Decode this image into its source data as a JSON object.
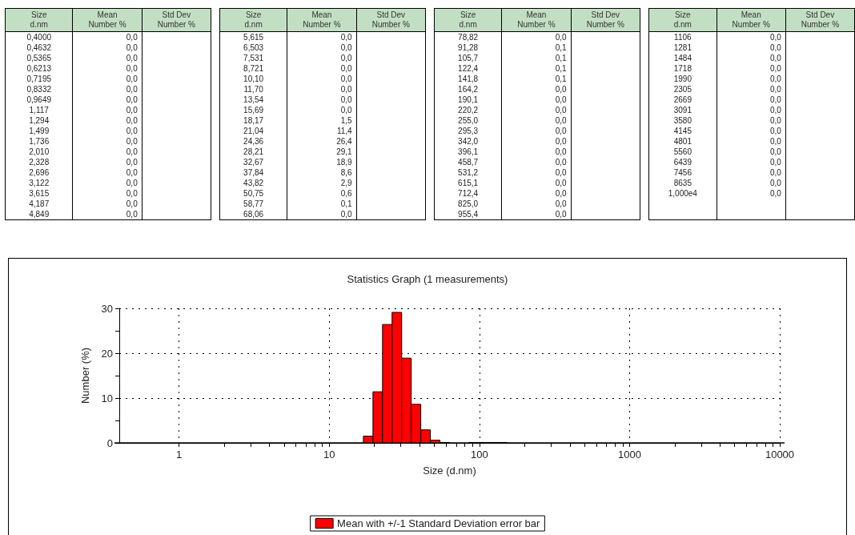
{
  "chart_data": [
    {
      "type": "other",
      "annotations": [
        "Size\nd.nm",
        "Mean\nNumber %",
        "Std Dev\nNumber %"
      ],
      "categories": [
        "0,4000",
        "0,4632",
        "0,5365",
        "0,6213",
        "0,7195",
        "0,8332",
        "0,9649",
        "1,117",
        "1,294",
        "1,499",
        "1,736",
        "2,010",
        "2,328",
        "2,696",
        "3,122",
        "3,615",
        "4,187",
        "4,849",
        "5,615",
        "6,503",
        "7,531",
        "8,721",
        "10,10",
        "11,70",
        "13,54",
        "15,69",
        "18,17",
        "21,04",
        "24,36",
        "28,21",
        "32,67",
        "37,84",
        "43,82",
        "50,75",
        "58,77",
        "68,06",
        "78,82",
        "91,28",
        "105,7",
        "122,4",
        "141,8",
        "164,2",
        "190,1",
        "220,2",
        "255,0",
        "295,3",
        "342,0",
        "396,1",
        "458,7",
        "531,2",
        "615,1",
        "712,4",
        "825,0",
        "955,4",
        "1106",
        "1281",
        "1484",
        "1718",
        "1990",
        "2305",
        "2669",
        "3091",
        "3580",
        "4145",
        "4801",
        "5560",
        "6439",
        "7456",
        "8635",
        "1,000e4"
      ],
      "value_labels": [
        "0,0",
        "0,0",
        "0,0",
        "0,0",
        "0,0",
        "0,0",
        "0,0",
        "0,0",
        "0,0",
        "0,0",
        "0,0",
        "0,0",
        "0,0",
        "0,0",
        "0,0",
        "0,0",
        "0,0",
        "0,0",
        "0,0",
        "0,0",
        "0,0",
        "0,0",
        "0,0",
        "0,0",
        "0,0",
        "0,0",
        "1,5",
        "11,4",
        "26,4",
        "29,1",
        "18,9",
        "8,6",
        "2,9",
        "0,6",
        "0,1",
        "0,0",
        "0,0",
        "0,1",
        "0,1",
        "0,1",
        "0,1",
        "0,0",
        "0,0",
        "0,0",
        "0,0",
        "0,0",
        "0,0",
        "0,0",
        "0,0",
        "0,0",
        "0,0",
        "0,0",
        "0,0",
        "0,0",
        "0,0",
        "0,0",
        "0,0",
        "0,0",
        "0,0",
        "0,0",
        "0,0",
        "0,0",
        "0,0",
        "0,0",
        "0,0",
        "0,0",
        "0,0",
        "0,0",
        "0,0",
        "0,0"
      ]
    },
    {
      "type": "bar",
      "title": "Statistics Graph (1 measurements)",
      "xlabel": "Size (d.nm)",
      "ylabel": "Number (%)",
      "x": [
        0.4,
        0.4632,
        0.5365,
        0.6213,
        0.7195,
        0.8332,
        0.9649,
        1.117,
        1.294,
        1.499,
        1.736,
        2.01,
        2.328,
        2.696,
        3.122,
        3.615,
        4.187,
        4.849,
        5.615,
        6.503,
        7.531,
        8.721,
        10.1,
        11.7,
        13.54,
        15.69,
        18.17,
        21.04,
        24.36,
        28.21,
        32.67,
        37.84,
        43.82,
        50.75,
        58.77,
        68.06,
        78.82,
        91.28,
        105.7,
        122.4,
        141.8,
        164.2,
        190.1,
        220.2,
        255.0,
        295.3,
        342.0,
        396.1,
        458.7,
        531.2,
        615.1,
        712.4,
        825.0,
        955.4,
        1106,
        1281,
        1484,
        1718,
        1990,
        2305,
        2669,
        3091,
        3580,
        4145,
        4801,
        5560,
        6439,
        7456,
        8635,
        10000
      ],
      "series": [
        {
          "name": "Mean with +/-1 Standard Deviation error bar",
          "color": "#ff0000",
          "values": [
            0.0,
            0.0,
            0.0,
            0.0,
            0.0,
            0.0,
            0.0,
            0.0,
            0.0,
            0.0,
            0.0,
            0.0,
            0.0,
            0.0,
            0.0,
            0.0,
            0.0,
            0.0,
            0.0,
            0.0,
            0.0,
            0.0,
            0.0,
            0.0,
            0.0,
            0.0,
            1.5,
            11.4,
            26.4,
            29.1,
            18.9,
            8.6,
            2.9,
            0.6,
            0.1,
            0.0,
            0.0,
            0.1,
            0.1,
            0.1,
            0.1,
            0.0,
            0.0,
            0.0,
            0.0,
            0.0,
            0.0,
            0.0,
            0.0,
            0.0,
            0.0,
            0.0,
            0.0,
            0.0,
            0.0,
            0.0,
            0.0,
            0.0,
            0.0,
            0.0,
            0.0,
            0.0,
            0.0,
            0.0,
            0.0,
            0.0,
            0.0,
            0.0,
            0.0,
            0.0
          ]
        }
      ],
      "log": "x",
      "xlim": [
        0.4,
        10000
      ],
      "xticks": [
        1,
        {
          "value": 2,
          "label": null
        },
        {
          "value": 3,
          "label": null
        },
        {
          "value": 4,
          "label": null
        },
        {
          "value": 5,
          "label": null
        },
        {
          "value": 6,
          "label": null
        },
        {
          "value": 7,
          "label": null
        },
        {
          "value": 8,
          "label": null
        },
        {
          "value": 9,
          "label": null
        },
        10,
        {
          "value": 20,
          "label": null
        },
        {
          "value": 30,
          "label": null
        },
        {
          "value": 40,
          "label": null
        },
        {
          "value": 50,
          "label": null
        },
        {
          "value": 60,
          "label": null
        },
        {
          "value": 70,
          "label": null
        },
        {
          "value": 80,
          "label": null
        },
        {
          "value": 90,
          "label": null
        },
        100,
        {
          "value": 200,
          "label": null
        },
        {
          "value": 300,
          "label": null
        },
        {
          "value": 400,
          "label": null
        },
        {
          "value": 500,
          "label": null
        },
        {
          "value": 600,
          "label": null
        },
        {
          "value": 700,
          "label": null
        },
        {
          "value": 800,
          "label": null
        },
        {
          "value": 900,
          "label": null
        },
        1000,
        {
          "value": 2000,
          "label": null
        },
        {
          "value": 3000,
          "label": null
        },
        {
          "value": 4000,
          "label": null
        },
        {
          "value": 5000,
          "label": null
        },
        {
          "value": 6000,
          "label": null
        },
        {
          "value": 7000,
          "label": null
        },
        {
          "value": 8000,
          "label": null
        },
        {
          "value": 9000,
          "label": null
        },
        10000
      ],
      "ylim": [
        0,
        30
      ],
      "yticks": [
        0,
        {
          "value": 5,
          "label": null
        },
        10,
        {
          "value": 15,
          "label": null
        },
        20,
        {
          "value": 25,
          "label": null
        },
        30
      ],
      "grid": true,
      "legend": "bottom"
    }
  ]
}
